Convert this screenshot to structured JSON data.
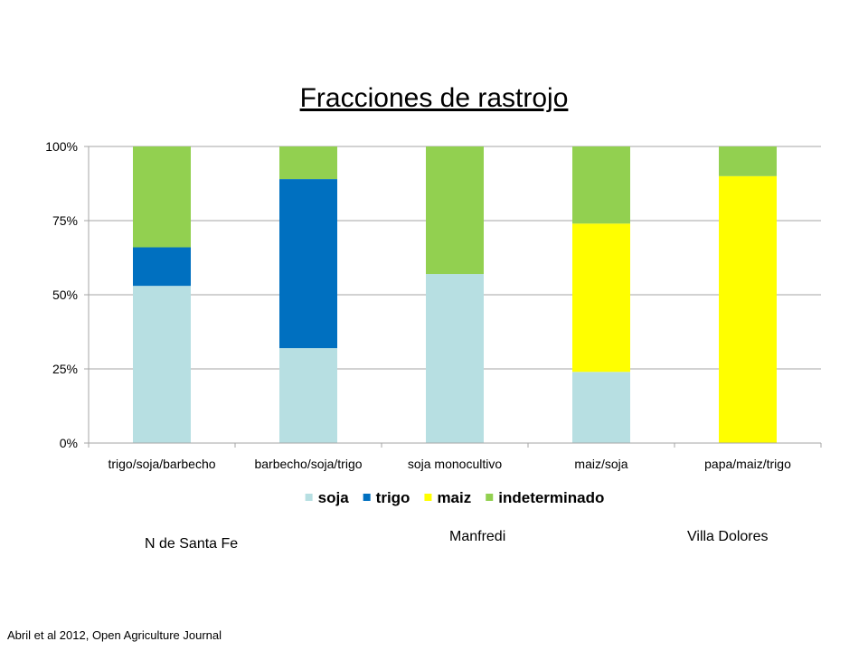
{
  "chart_data": {
    "type": "bar",
    "stacked": true,
    "percent": true,
    "title": "Fracciones de rastrojo",
    "categories": [
      "trigo/soja/barbecho",
      "barbecho/soja/trigo",
      "soja monocultivo",
      "maiz/soja",
      "papa/maiz/trigo"
    ],
    "series": [
      {
        "name": "soja",
        "color": "#b7dfe2",
        "values": [
          53,
          32,
          57,
          24,
          0
        ]
      },
      {
        "name": "trigo",
        "color": "#0070c0",
        "values": [
          13,
          57,
          0,
          0,
          0
        ]
      },
      {
        "name": "maiz",
        "color": "#ffff00",
        "values": [
          0,
          0,
          0,
          50,
          90
        ]
      },
      {
        "name": "indeterminado",
        "color": "#92d050",
        "values": [
          34,
          11,
          43,
          26,
          10
        ]
      }
    ],
    "ylim": [
      0,
      100
    ],
    "yticks": [
      "0%",
      "25%",
      "50%",
      "75%",
      "100%"
    ],
    "grid": true,
    "legend_position": "bottom"
  },
  "regions": {
    "north": "N de Santa Fe",
    "manfredi": "Manfredi",
    "villa": "Villa Dolores"
  },
  "citation": "Abril et al 2012, Open Agriculture Journal"
}
